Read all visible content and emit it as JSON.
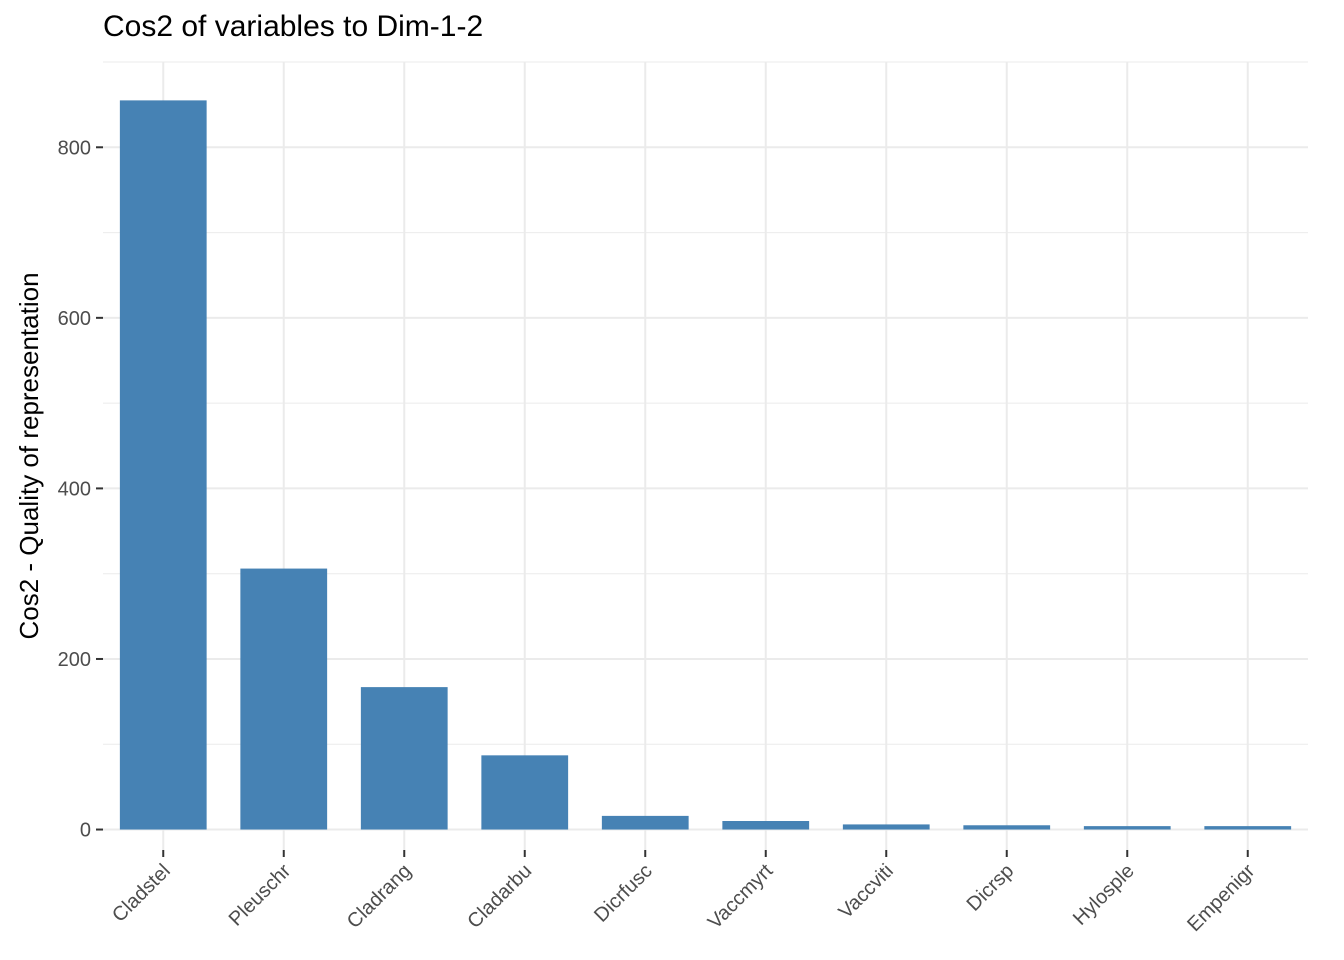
{
  "chart_data": {
    "type": "bar",
    "title": "Cos2 of variables to Dim-1-2",
    "xlabel": "",
    "ylabel": "Cos2 - Quality of representation",
    "categories": [
      "Cladstel",
      "Pleuschr",
      "Cladrang",
      "Cladarbu",
      "Dicrfusc",
      "Vaccmyrt",
      "Vaccviti",
      "Dicrsp",
      "Hylosple",
      "Empenigr"
    ],
    "values": [
      855,
      306,
      167,
      87,
      16,
      10,
      6,
      5,
      4,
      4
    ],
    "ylim": [
      -24,
      900
    ],
    "yticks": [
      0,
      200,
      400,
      600,
      800
    ],
    "grid": true,
    "bar_color": "#4682B4",
    "grid_color": "#EBEBEB"
  }
}
